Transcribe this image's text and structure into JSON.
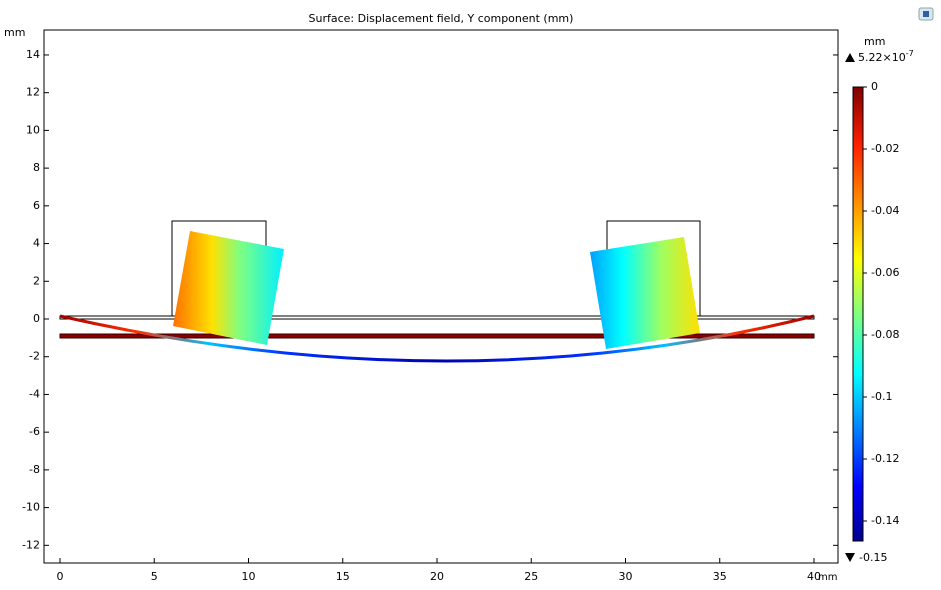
{
  "chart_data": {
    "type": "surface",
    "title": "Surface: Displacement field, Y component (mm)",
    "x_unit": "mm",
    "y_unit": "mm",
    "xlim": [
      0,
      40
    ],
    "xticks": [
      0,
      5,
      10,
      15,
      20,
      25,
      30,
      35,
      40
    ],
    "ylim": [
      -12,
      14
    ],
    "yticks": [
      -12,
      -10,
      -8,
      -6,
      -4,
      -2,
      0,
      2,
      4,
      6,
      8,
      10,
      12,
      14
    ],
    "colorbar": {
      "unit": "mm",
      "max": {
        "value": 5.22e-07,
        "label": "5.22×10",
        "exponent": "-7"
      },
      "min": -0.15,
      "ticks": [
        0,
        -0.02,
        -0.04,
        -0.06,
        -0.08,
        -0.1,
        -0.12,
        -0.14
      ]
    }
  }
}
